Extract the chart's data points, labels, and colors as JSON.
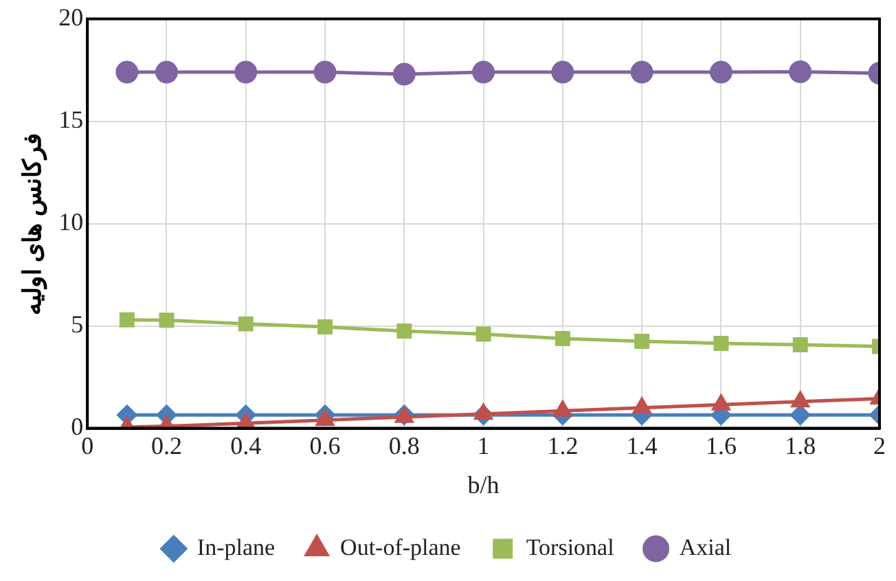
{
  "chart_data": {
    "type": "line",
    "xlabel": "b/h",
    "ylabel": "فرکانس های اولیه",
    "x": [
      0.1,
      0.2,
      0.4,
      0.6,
      0.8,
      1,
      1.2,
      1.4,
      1.6,
      1.8,
      2
    ],
    "xlim": [
      0,
      2
    ],
    "xticks": [
      0,
      0.2,
      0.4,
      0.6,
      0.8,
      1,
      1.2,
      1.4,
      1.6,
      1.8,
      2
    ],
    "ylim": [
      0,
      20
    ],
    "yticks": [
      0,
      5,
      10,
      15,
      20
    ],
    "grid": true,
    "legend": "bottom",
    "line_style": "solid",
    "series": [
      {
        "name": "In-plane",
        "color": "#4a7ebb",
        "marker": "diamond",
        "values": [
          0.65,
          0.65,
          0.65,
          0.65,
          0.65,
          0.65,
          0.65,
          0.65,
          0.65,
          0.65,
          0.65
        ]
      },
      {
        "name": "Out-of-plane",
        "color": "#c0504d",
        "marker": "triangle",
        "values": [
          0.05,
          0.1,
          0.25,
          0.4,
          0.55,
          0.7,
          0.85,
          1.0,
          1.15,
          1.3,
          1.45
        ]
      },
      {
        "name": "Torsional",
        "color": "#9bbb59",
        "marker": "square",
        "values": [
          5.3,
          5.28,
          5.1,
          4.95,
          4.75,
          4.6,
          4.38,
          4.25,
          4.15,
          4.08,
          4.0
        ]
      },
      {
        "name": "Axial",
        "color": "#8064a2",
        "marker": "circle",
        "values": [
          17.4,
          17.4,
          17.4,
          17.4,
          17.3,
          17.4,
          17.4,
          17.4,
          17.4,
          17.42,
          17.35
        ]
      }
    ]
  }
}
